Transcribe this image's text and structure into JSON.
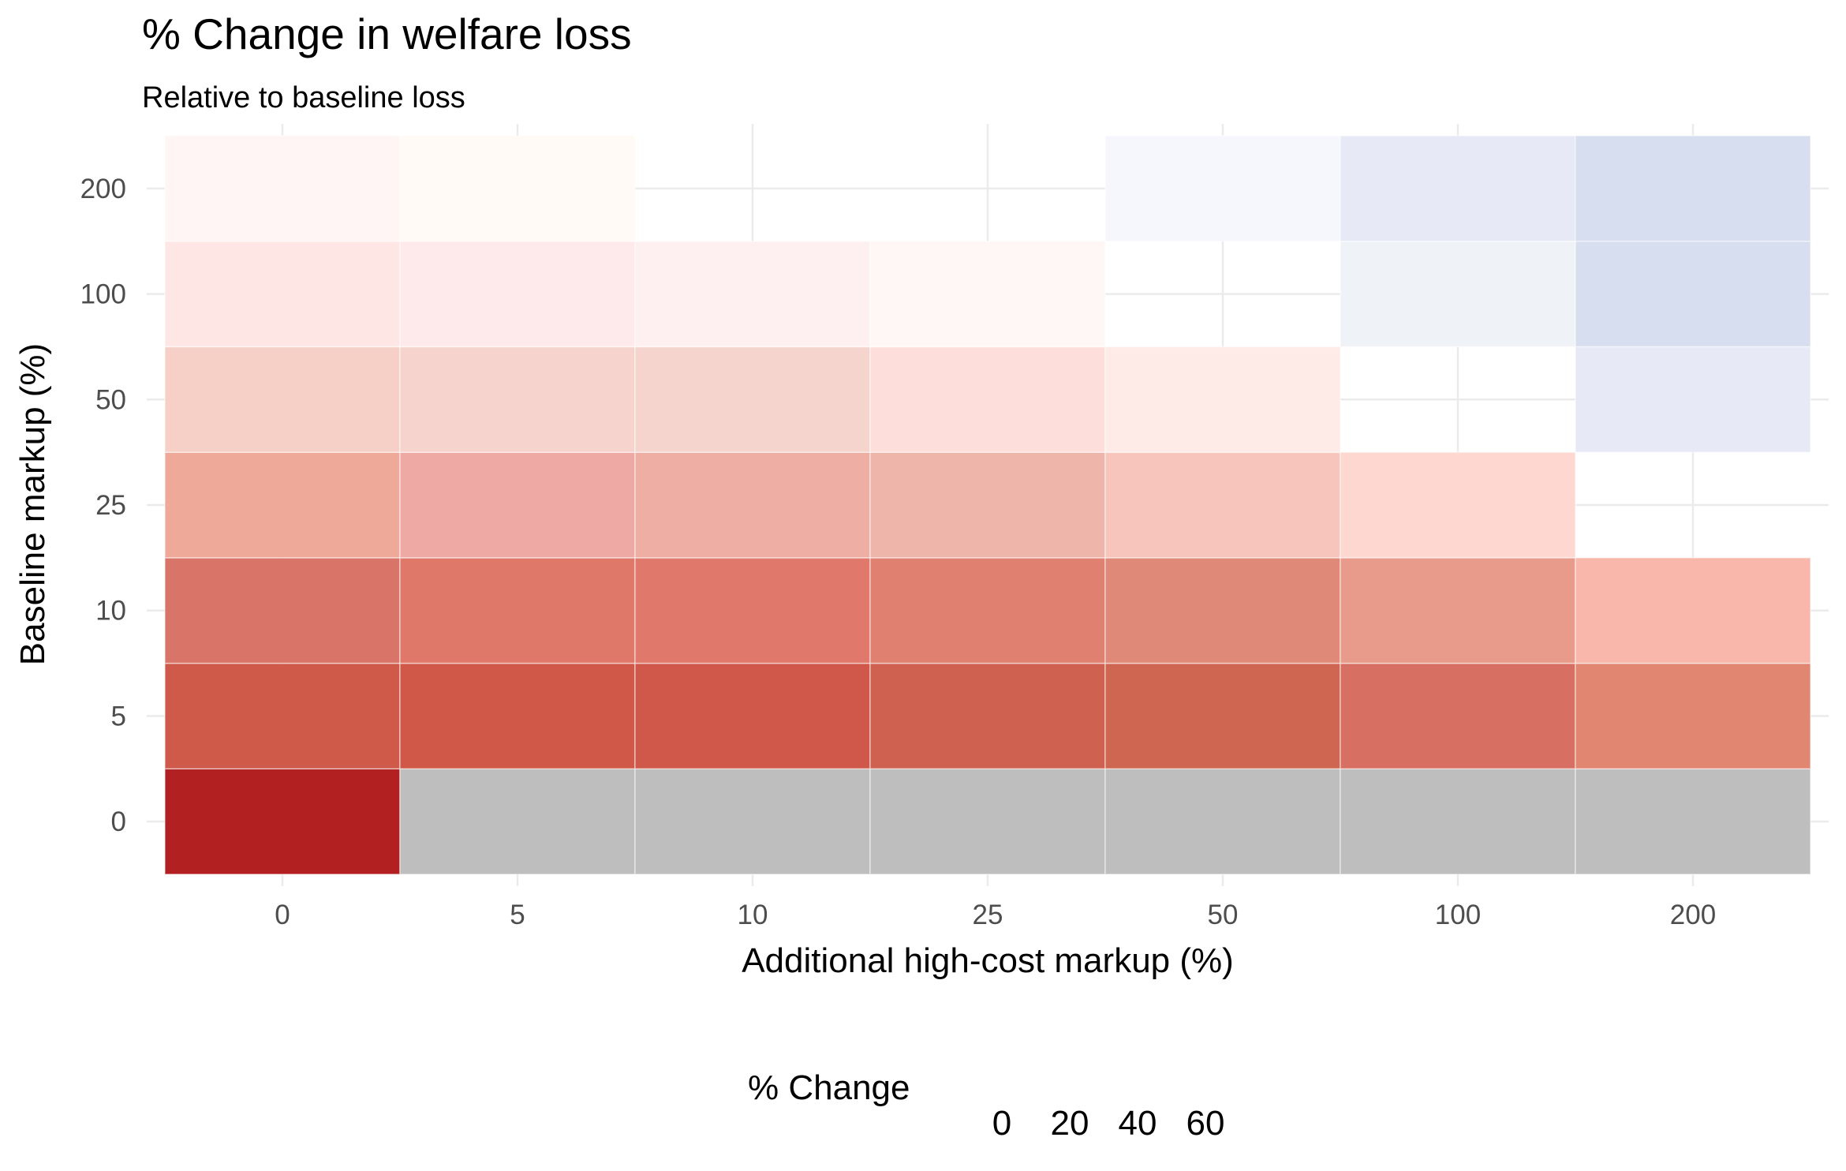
{
  "chart_data": {
    "type": "heatmap",
    "title": "% Change in welfare loss",
    "subtitle": "Relative to baseline loss",
    "xlabel": "Additional high-cost markup (%)",
    "ylabel": "Baseline markup (%)",
    "x_categories": [
      "0",
      "5",
      "10",
      "25",
      "50",
      "100",
      "200"
    ],
    "y_categories": [
      "0",
      "5",
      "10",
      "25",
      "50",
      "100",
      "200"
    ],
    "cells": [
      [
        "#b22022",
        "#bebebe",
        "#bebebe",
        "#bebebe",
        "#bebebe",
        "#bebebe",
        "#bebebe"
      ],
      [
        "#cf5a4a",
        "#cf5849",
        "#cf584a",
        "#cf6150",
        "#cf6651",
        "#d77063",
        "#e08671"
      ],
      [
        "#d87468",
        "#e07869",
        "#e0796b",
        "#e08071",
        "#df8979",
        "#e89b8b",
        "#f8b7aa"
      ],
      [
        "#efa998",
        "#efa9a5",
        "#eeaea4",
        "#eeb5aa",
        "#f7c5bb",
        "#fed8d0",
        null
      ],
      [
        "#f6cfc6",
        "#f6d3cc",
        "#f5d4cd",
        "#fddedb",
        "#feebe7",
        null,
        "#e7eaf6"
      ],
      [
        "#fee6e5",
        "#feeaea",
        "#fef0f0",
        "#fff6f6",
        null,
        "#eff2f6",
        "#d6deef"
      ],
      [
        "#fff5f5",
        "#fffaf5",
        null,
        null,
        "#f6f7fd",
        "#e7eaf6",
        "#d6deef"
      ]
    ],
    "missing_color": "#bebebe",
    "legend": {
      "title": "% Change",
      "labels": [
        "0",
        "20",
        "40",
        "60"
      ],
      "position": "bottom"
    },
    "grid": true
  }
}
